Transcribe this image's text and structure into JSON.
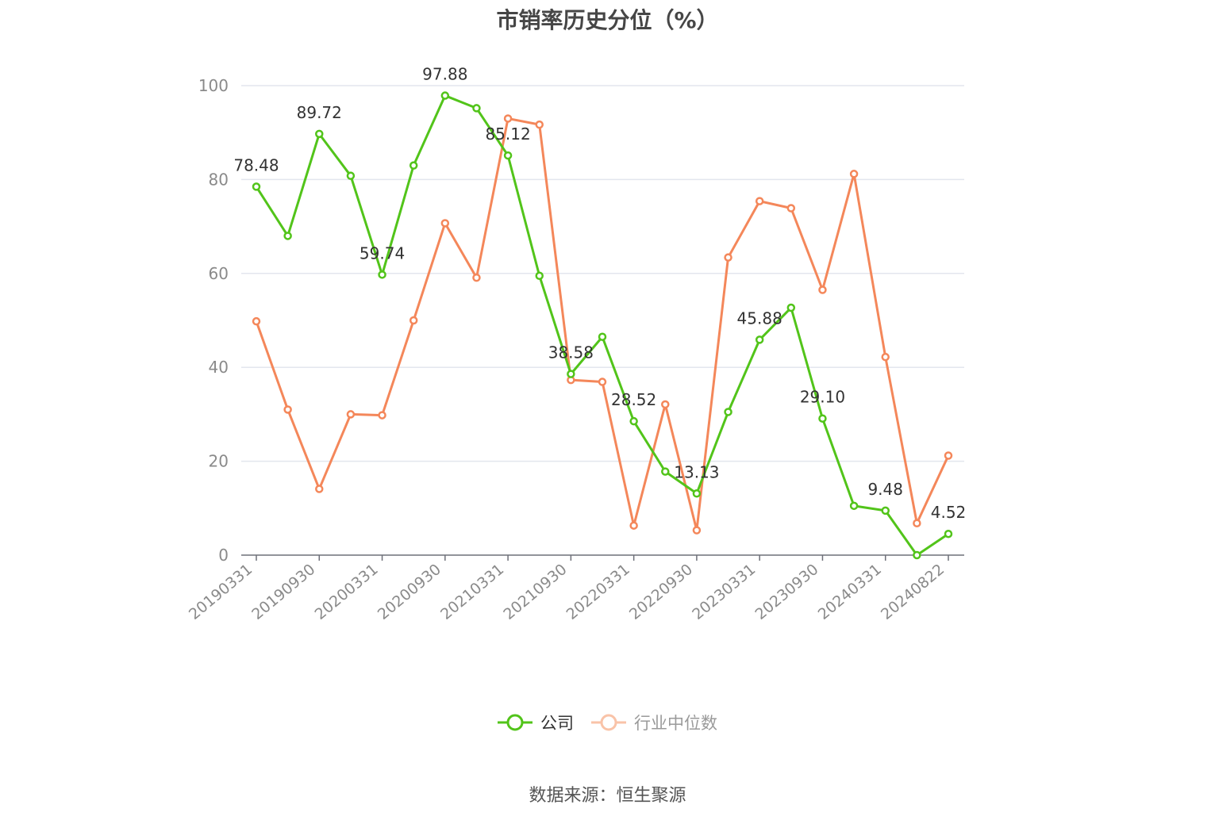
{
  "chart_data": {
    "type": "line",
    "title": "市销率历史分位（%）",
    "xlabel": "",
    "ylabel": "",
    "ylim": [
      0,
      100
    ],
    "yticks": [
      0,
      20,
      40,
      60,
      80,
      100
    ],
    "grid": true,
    "legend_position": "bottom",
    "x": [
      "20190331",
      "20190630",
      "20190930",
      "20191231",
      "20200331",
      "20200630",
      "20200930",
      "20201231",
      "20210331",
      "20210630",
      "20210930",
      "20211231",
      "20220331",
      "20220630",
      "20220930",
      "20221231",
      "20230331",
      "20230630",
      "20230930",
      "20231231",
      "20240331",
      "20240630",
      "20240822"
    ],
    "x_tick_labels": [
      "20190331",
      "20190930",
      "20200331",
      "20200930",
      "20210331",
      "20210930",
      "20220331",
      "20220930",
      "20230331",
      "20230930",
      "20240331",
      "20240822"
    ],
    "series": [
      {
        "name": "公司",
        "color": "#52c41a",
        "values": [
          78.48,
          68.0,
          89.72,
          80.8,
          59.74,
          83.0,
          97.88,
          95.2,
          85.12,
          59.5,
          38.58,
          46.5,
          28.52,
          17.8,
          13.13,
          30.5,
          45.88,
          52.7,
          29.1,
          10.5,
          9.48,
          0.0,
          4.52
        ],
        "labels": {
          "0": "78.48",
          "2": "89.72",
          "4": "59.74",
          "6": "97.88",
          "8": "85.12",
          "10": "38.58",
          "12": "28.52",
          "14": "13.13",
          "16": "45.88",
          "18": "29.10",
          "20": "9.48",
          "22": "4.52"
        }
      },
      {
        "name": "行业中位数",
        "color": "#f4875a",
        "values": [
          49.8,
          31.0,
          14.1,
          30.0,
          29.8,
          50.0,
          70.7,
          59.1,
          93.0,
          91.7,
          37.3,
          36.9,
          6.3,
          32.1,
          5.3,
          63.4,
          75.4,
          73.9,
          56.5,
          81.2,
          42.2,
          6.8,
          21.2
        ]
      }
    ]
  },
  "legend": {
    "company_label": "公司",
    "industry_label": "行业中位数",
    "company_color": "#52c41a",
    "industry_color": "#f9c3a8"
  },
  "footer": {
    "source": "数据来源：恒生聚源"
  }
}
